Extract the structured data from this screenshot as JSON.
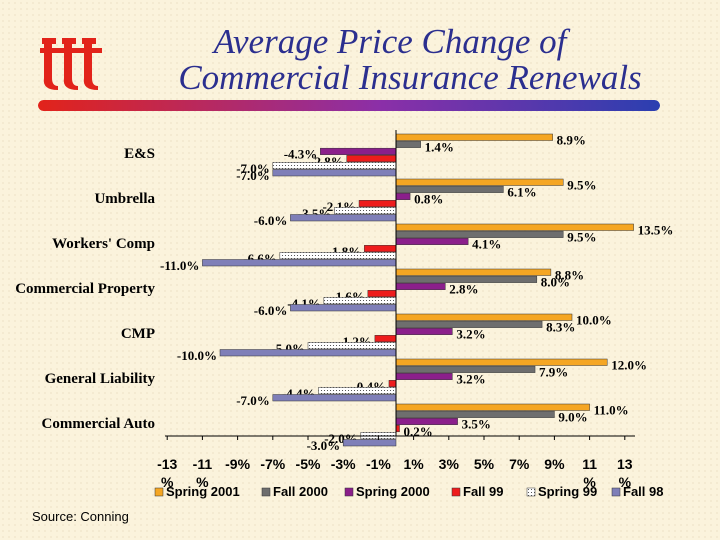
{
  "title_line1": "Average Price Change of",
  "title_line2": "Commercial Insurance Renewals",
  "source": "Source: Conning",
  "colors": {
    "title": "#2b2f8f",
    "logo": "#e2231a",
    "rule_start": "#e2231a",
    "rule_mid": "#8b2fa8",
    "rule_end": "#2b3fb0"
  },
  "chart_data": {
    "type": "bar",
    "orientation": "horizontal",
    "categories": [
      "E&S",
      "Umbrella",
      "Workers' Comp",
      "Commercial Property",
      "CMP",
      "General Liability",
      "Commercial Auto"
    ],
    "series": [
      {
        "name": "Spring 2001",
        "color": "#f5a623",
        "values": [
          8.9,
          9.5,
          13.5,
          8.8,
          10.0,
          12.0,
          11.0
        ],
        "labels": [
          "8.9%",
          "9.5%",
          "13.5%",
          "8.8%",
          "10.0%",
          "12.0%",
          "11.0%"
        ]
      },
      {
        "name": "Fall 2000",
        "color": "#6e6e6e",
        "values": [
          1.4,
          6.1,
          9.5,
          8.0,
          8.3,
          7.9,
          9.0
        ],
        "labels": [
          "1.4%",
          "6.1%",
          "9.5%",
          "8.0%",
          "8.3%",
          "7.9%",
          "9.0%"
        ]
      },
      {
        "name": "Spring 2000",
        "color": "#8b1f8b",
        "values": [
          -4.3,
          0.8,
          4.1,
          2.8,
          3.2,
          3.2,
          3.5
        ],
        "labels": [
          "-4.3%",
          "0.8%",
          "4.1%",
          "2.8%",
          "3.2%",
          "3.2%",
          "3.5%"
        ]
      },
      {
        "name": "Fall 99",
        "color": "#ee1c1c",
        "values": [
          -2.8,
          -2.1,
          -1.8,
          -1.6,
          -1.2,
          -0.4,
          0.2
        ],
        "labels": [
          "-2.8%",
          "-2.1%",
          "-1.8%",
          "-1.6%",
          "-1.2%",
          "-0.4%",
          "0.2%"
        ]
      },
      {
        "name": "Spring 99",
        "color": "#f2f2f2",
        "values": [
          -7.0,
          -3.5,
          -6.6,
          -4.1,
          -5.0,
          -4.4,
          -2.0
        ],
        "labels": [
          "-7.0%",
          "-3.5%",
          "-6.6%",
          "-4.1%",
          "-5.0%",
          "-4.4%",
          "-2.0%"
        ]
      },
      {
        "name": "Fall 98",
        "color": "#7f7fb8",
        "values": [
          -7.0,
          -6.0,
          -11.0,
          -6.0,
          -10.0,
          -7.0,
          -3.0
        ],
        "labels": [
          "-7.0%",
          "-6.0%",
          "-11.0%",
          "-6.0%",
          "-10.0%",
          "-7.0%",
          "-3.0%"
        ]
      }
    ],
    "x_ticks": [
      -13,
      -11,
      -9,
      -7,
      -5,
      -3,
      -1,
      1,
      3,
      5,
      7,
      9,
      11,
      13
    ],
    "x_tick_labels": [
      [
        "-13",
        "%"
      ],
      [
        "-11",
        "%"
      ],
      [
        "-9%"
      ],
      [
        "-7%"
      ],
      [
        "-5%"
      ],
      [
        "-3%"
      ],
      [
        "-1%"
      ],
      [
        "1%"
      ],
      [
        "3%"
      ],
      [
        "5%"
      ],
      [
        "7%"
      ],
      [
        "9%"
      ],
      [
        "11",
        "%"
      ],
      [
        "13",
        "%"
      ]
    ],
    "xlim": [
      -13,
      13
    ],
    "grid": false,
    "legend_position": "bottom"
  }
}
